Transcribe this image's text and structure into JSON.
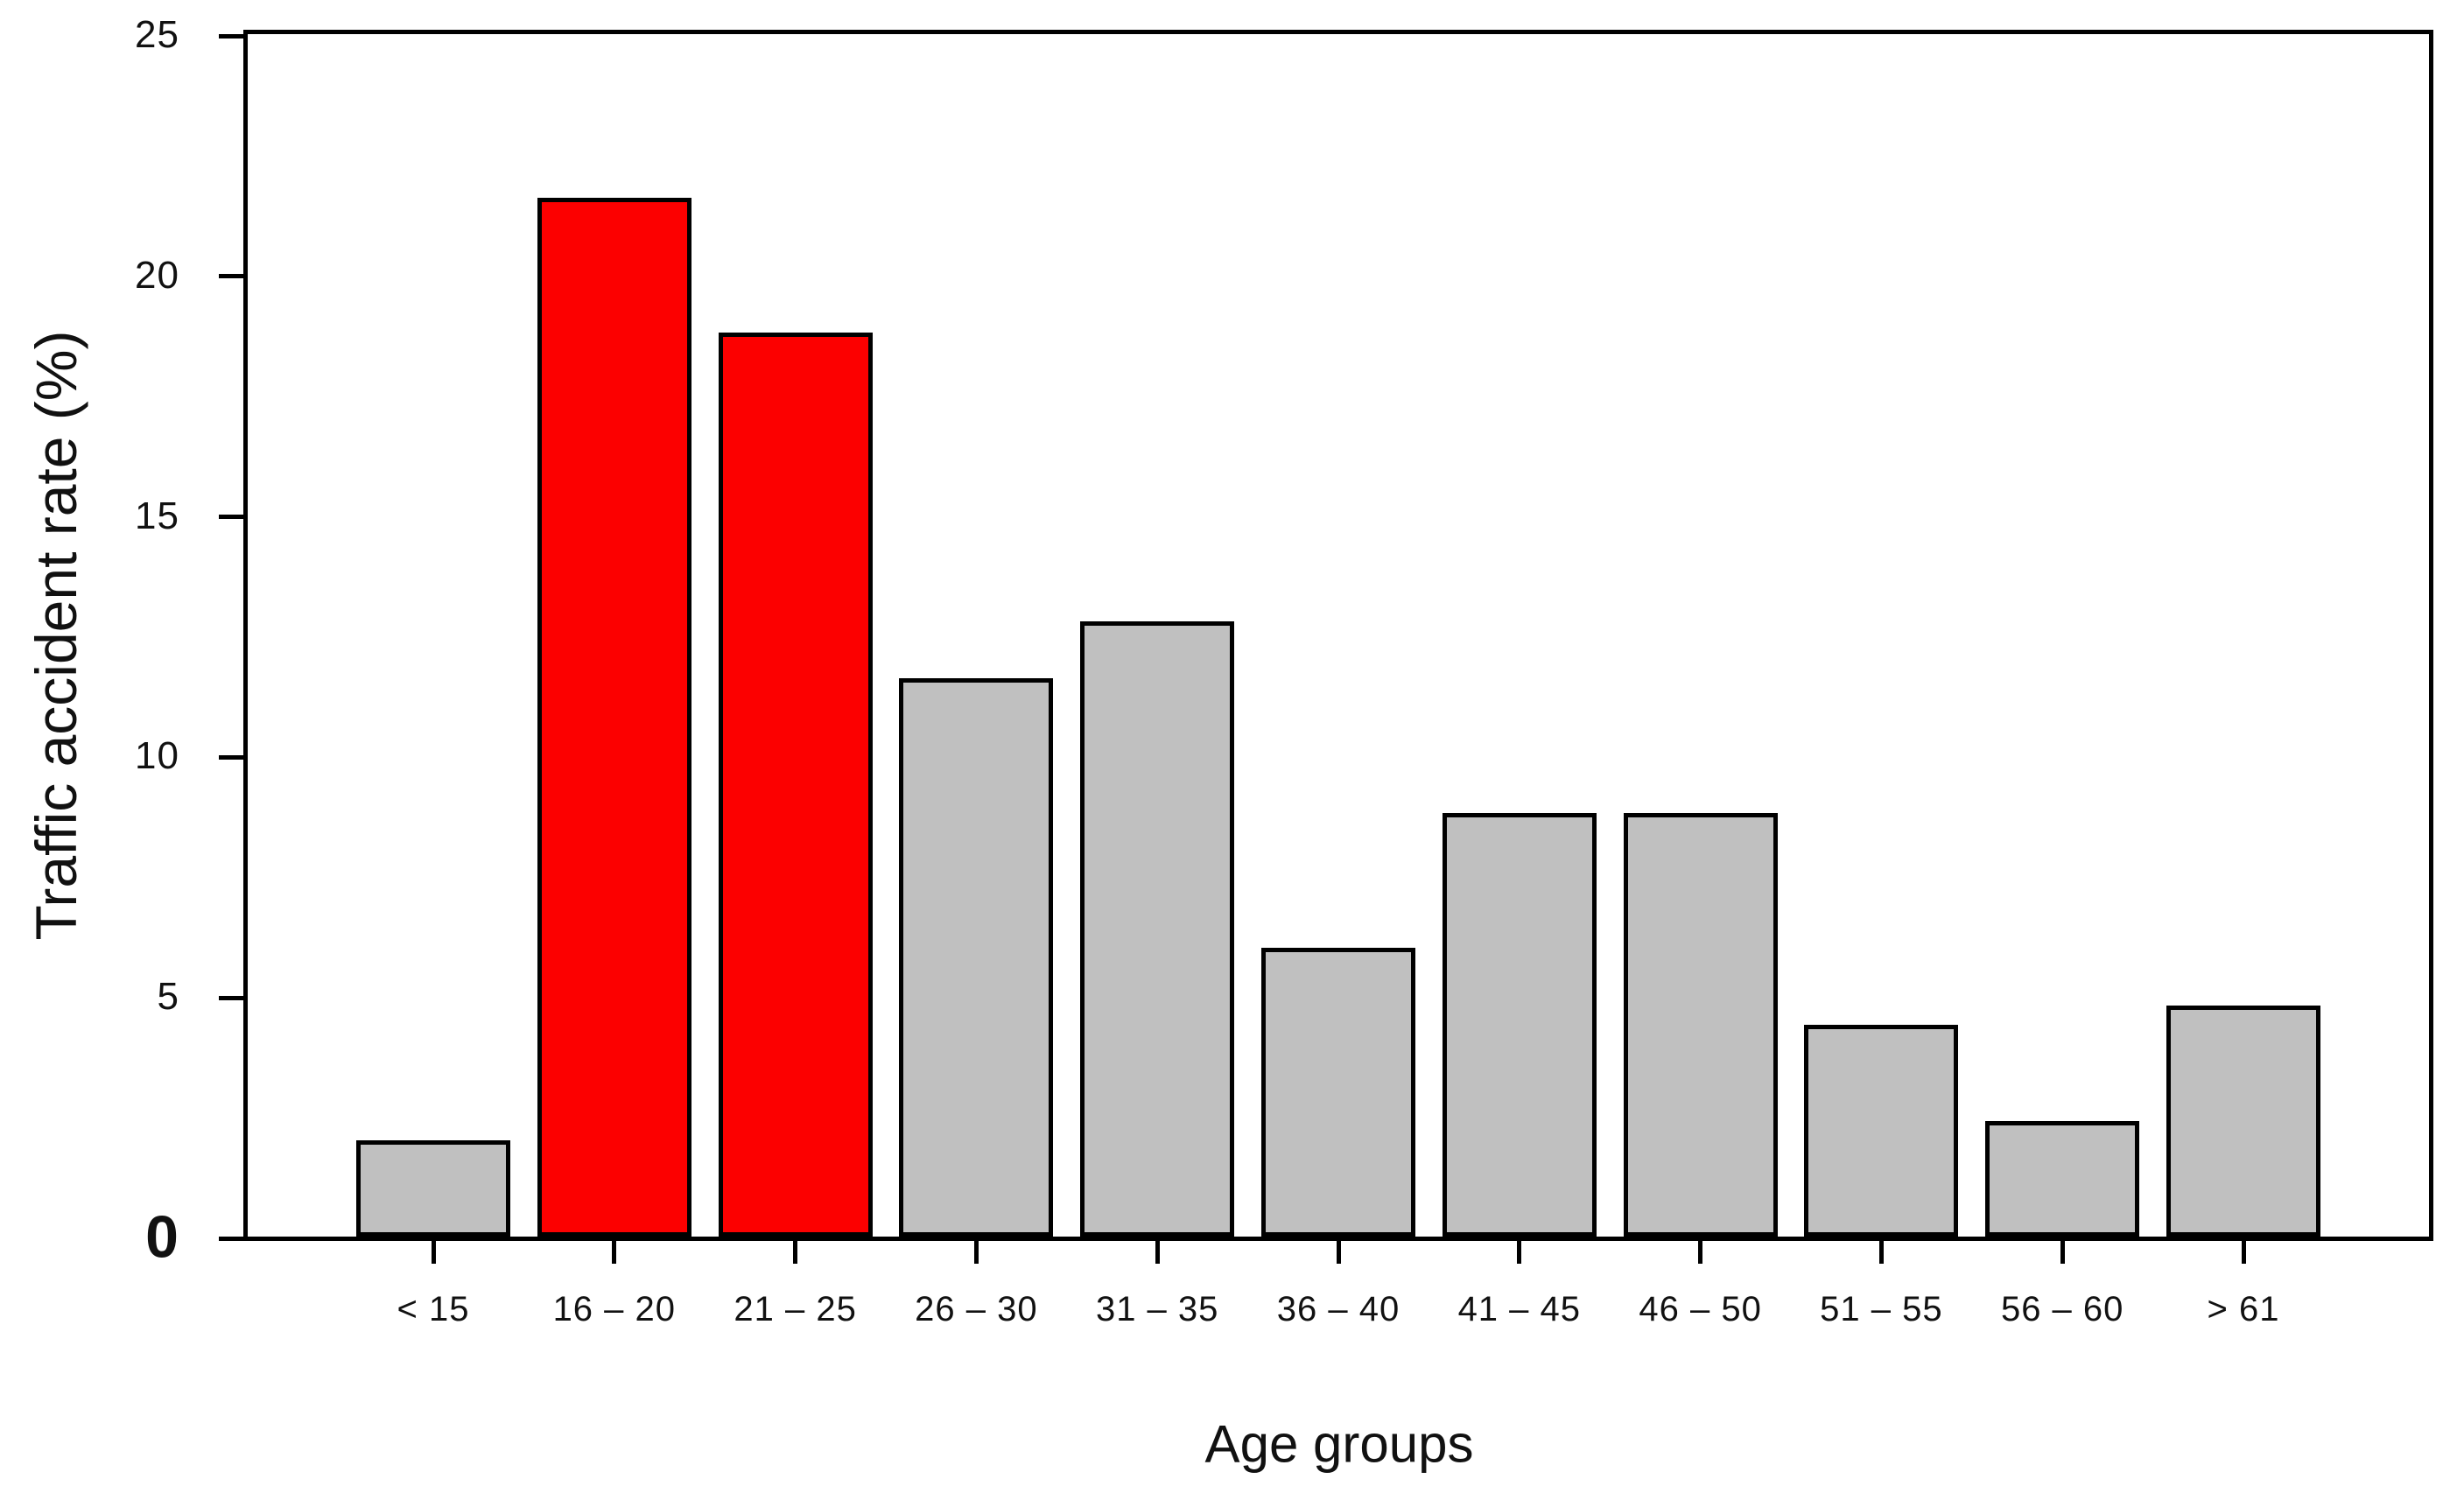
{
  "chart_data": {
    "type": "bar",
    "title": "",
    "xlabel": "Age groups",
    "ylabel": "Traffic accident rate (%)",
    "categories": [
      "< 15",
      "16 – 20",
      "21 – 25",
      "26 – 30",
      "31 – 35",
      "36 – 40",
      "41 – 45",
      "46 – 50",
      "51 – 55",
      "56 – 60",
      "> 61"
    ],
    "values": [
      2.0,
      21.6,
      18.8,
      11.6,
      12.8,
      6.0,
      8.8,
      8.8,
      4.4,
      2.4,
      4.8
    ],
    "bar_colors": [
      "#c0c0c0",
      "#fc0000",
      "#fc0000",
      "#c0c0c0",
      "#c0c0c0",
      "#c0c0c0",
      "#c0c0c0",
      "#c0c0c0",
      "#c0c0c0",
      "#c0c0c0",
      "#c0c0c0"
    ],
    "highlighted_categories": [
      "16 – 20",
      "21 – 25"
    ],
    "highlight_color": "#fc0000",
    "default_bar_color": "#c0c0c0",
    "bar_border_color": "#000000",
    "axis_color": "#000000",
    "background_color": "#ffffff",
    "ylim": [
      0,
      25
    ],
    "yticks": [
      0,
      5,
      10,
      15,
      20,
      25
    ],
    "ytick_labels": [
      "0",
      "5",
      "10",
      "15",
      "20",
      "25"
    ],
    "grid": false,
    "legend": null,
    "frame": "full-box"
  }
}
